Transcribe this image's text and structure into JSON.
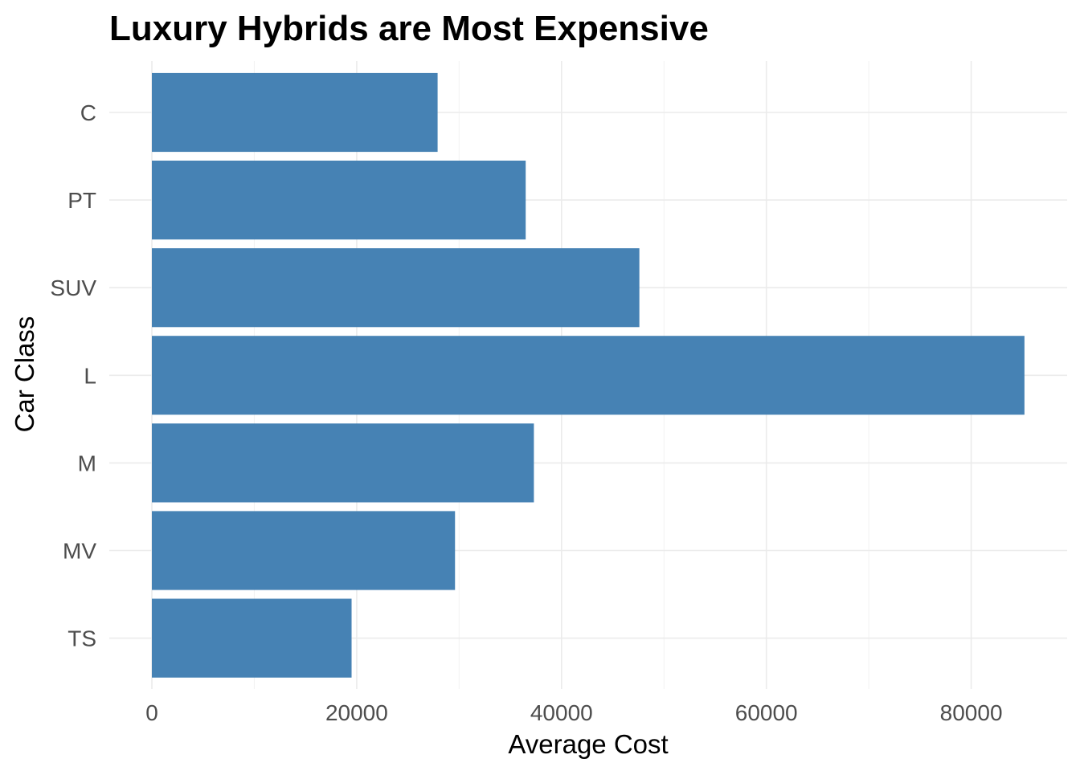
{
  "chart_data": {
    "type": "bar",
    "orientation": "horizontal",
    "title": "Luxury Hybrids are Most Expensive",
    "xlabel": "Average Cost",
    "ylabel": "Car Class",
    "categories": [
      "C",
      "PT",
      "SUV",
      "L",
      "M",
      "MV",
      "TS"
    ],
    "values": [
      27900,
      36500,
      47600,
      85200,
      37300,
      29600,
      19500
    ],
    "xlim": [
      0,
      87000
    ],
    "xticks": [
      0,
      20000,
      40000,
      60000,
      80000
    ],
    "xtick_labels": [
      "0",
      "20000",
      "40000",
      "60000",
      "80000"
    ],
    "bar_color": "#4682b4",
    "grid": true,
    "legend": "none"
  }
}
